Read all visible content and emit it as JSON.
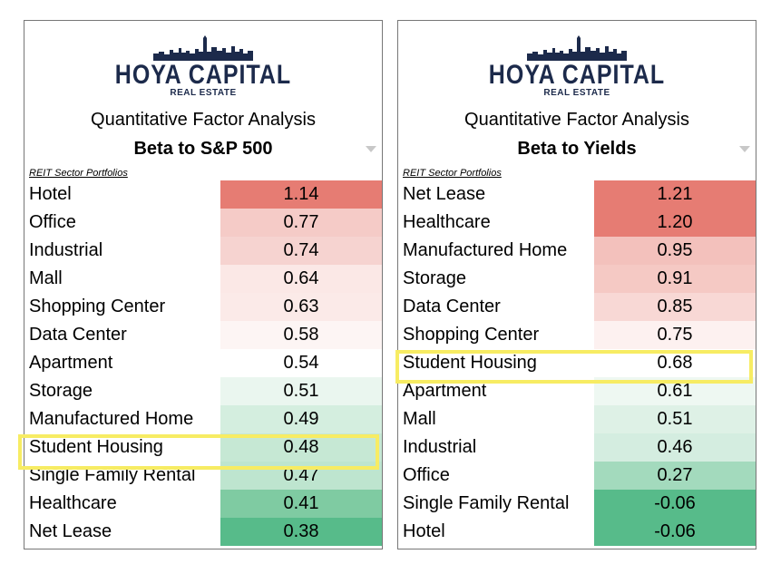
{
  "panels": [
    {
      "logo_text": "HOYA CAPITAL",
      "logo_sub": "REAL ESTATE",
      "title": "Quantitative Factor Analysis",
      "subtitle": "Beta to S&P 500",
      "section_label": "REIT Sector Portfolios",
      "rows": [
        {
          "name": "Hotel",
          "value": "1.14",
          "color": "#e67c73"
        },
        {
          "name": "Office",
          "value": "0.77",
          "color": "#f5cbc7"
        },
        {
          "name": "Industrial",
          "value": "0.74",
          "color": "#f6d3d0"
        },
        {
          "name": "Mall",
          "value": "0.64",
          "color": "#fbe8e6"
        },
        {
          "name": "Shopping Center",
          "value": "0.63",
          "color": "#fbeae8"
        },
        {
          "name": "Data Center",
          "value": "0.58",
          "color": "#fdf5f4"
        },
        {
          "name": "Apartment",
          "value": "0.54",
          "color": "#ffffff"
        },
        {
          "name": "Storage",
          "value": "0.51",
          "color": "#eaf6ef"
        },
        {
          "name": "Manufactured Home",
          "value": "0.49",
          "color": "#d4eedf"
        },
        {
          "name": "Student Housing",
          "value": "0.48",
          "color": "#c6e8d4"
        },
        {
          "name": "Single Family Rental",
          "value": "0.47",
          "color": "#bee5cf"
        },
        {
          "name": "Healthcare",
          "value": "0.41",
          "color": "#7fcba2"
        },
        {
          "name": "Net Lease",
          "value": "0.38",
          "color": "#57bb8a"
        }
      ]
    },
    {
      "logo_text": "HOYA CAPITAL",
      "logo_sub": "REAL ESTATE",
      "title": "Quantitative Factor Analysis",
      "subtitle": "Beta to Yields",
      "section_label": "REIT Sector Portfolios",
      "rows": [
        {
          "name": "Net Lease",
          "value": "1.21",
          "color": "#e67c73"
        },
        {
          "name": "Healthcare",
          "value": "1.20",
          "color": "#e67c73"
        },
        {
          "name": "Manufactured Home",
          "value": "0.95",
          "color": "#f3c1bc"
        },
        {
          "name": "Storage",
          "value": "0.91",
          "color": "#f5c9c4"
        },
        {
          "name": "Data Center",
          "value": "0.85",
          "color": "#f8d8d5"
        },
        {
          "name": "Shopping Center",
          "value": "0.75",
          "color": "#fdf1f0"
        },
        {
          "name": "Student Housing",
          "value": "0.68",
          "color": "#ffffff"
        },
        {
          "name": "Apartment",
          "value": "0.61",
          "color": "#eef8f2"
        },
        {
          "name": "Mall",
          "value": "0.51",
          "color": "#def1e6"
        },
        {
          "name": "Industrial",
          "value": "0.46",
          "color": "#d4ede0"
        },
        {
          "name": "Office",
          "value": "0.27",
          "color": "#a3dabd"
        },
        {
          "name": "Single Family Rental",
          "value": "-0.06",
          "color": "#57bb8a"
        },
        {
          "name": "Hotel",
          "value": "-0.06",
          "color": "#57bb8a"
        }
      ]
    }
  ],
  "colors": {
    "logo": "#1c2a4b",
    "highlight": "#f7ec63"
  }
}
